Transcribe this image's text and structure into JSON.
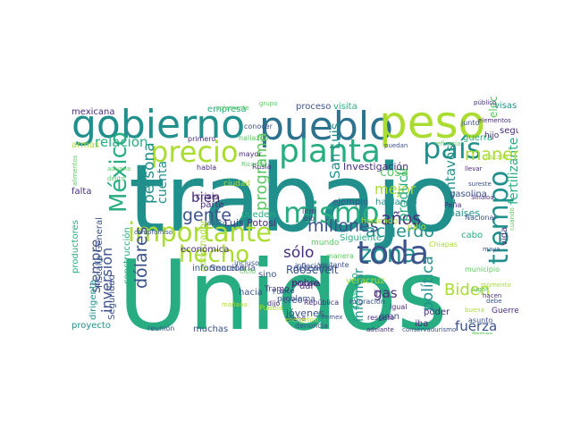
{
  "palette": [
    "#2c728e",
    "#21908d",
    "#27ad81",
    "#5dc863",
    "#aadc32",
    "#fde725",
    "#3b528b",
    "#472d7b",
    "#440154"
  ],
  "words": [
    {
      "t": "trabajo",
      "c": 1
    },
    {
      "t": "Unidos",
      "c": 2
    },
    {
      "t": "gobierno",
      "c": 1
    },
    {
      "t": "pueblo",
      "c": 0
    },
    {
      "t": "peso",
      "c": 4
    },
    {
      "t": "planta",
      "c": 2
    },
    {
      "t": "país",
      "c": 1
    },
    {
      "t": "precio",
      "c": 4
    },
    {
      "t": "importante",
      "c": 4
    },
    {
      "t": "mismo",
      "c": 2
    },
    {
      "t": "hecho",
      "c": 4
    },
    {
      "t": "zona",
      "c": 1
    },
    {
      "t": "toda",
      "c": 6
    },
    {
      "t": "tiempo",
      "c": 1
    },
    {
      "t": "México",
      "c": 2
    },
    {
      "t": "dólares",
      "c": 6
    },
    {
      "t": "acuerdo",
      "c": 1
    },
    {
      "t": "centavos",
      "c": 1
    },
    {
      "t": "millones",
      "c": 6
    },
    {
      "t": "gente",
      "c": 6
    },
    {
      "t": "Biden",
      "c": 4
    },
    {
      "t": "programa",
      "c": 3
    },
    {
      "t": "fertilizante",
      "c": 2
    },
    {
      "t": "manera",
      "c": 4
    },
    {
      "t": "persona",
      "c": 1
    },
    {
      "t": "relación",
      "c": 2
    },
    {
      "t": "años",
      "c": 7
    },
    {
      "t": "política",
      "c": 1
    },
    {
      "t": "fuerza",
      "c": 6
    },
    {
      "t": "mejor",
      "c": 4
    },
    {
      "t": "inversión",
      "c": 6
    },
    {
      "t": "siempre",
      "c": 6
    },
    {
      "t": "sólo",
      "c": 7
    },
    {
      "t": "producir",
      "c": 2
    },
    {
      "t": "informar",
      "c": 1
    },
    {
      "t": "San Luis",
      "c": 1
    },
    {
      "t": "cosa",
      "c": 3
    },
    {
      "t": "bien",
      "c": 7
    },
    {
      "t": "gas",
      "c": 7
    },
    {
      "t": "cuenta",
      "c": 1
    },
    {
      "t": "Roosevelt",
      "c": 6
    },
    {
      "t": "Luis Potosí",
      "c": 7
    },
    {
      "t": "Fiscalía General",
      "c": 6
    },
    {
      "t": "Investigación",
      "c": 7
    },
    {
      "t": "electricidad",
      "c": 3
    },
    {
      "t": "empresa",
      "c": 2
    },
    {
      "t": "proceso",
      "c": 6
    },
    {
      "t": "visita",
      "c": 2
    },
    {
      "t": "mexicana",
      "c": 7
    },
    {
      "t": "visas",
      "c": 1
    },
    {
      "t": "seguir",
      "c": 7
    },
    {
      "t": "guerra",
      "c": 2
    },
    {
      "t": "gasolina",
      "c": 6
    },
    {
      "t": "hablando",
      "c": 1
    },
    {
      "t": "países",
      "c": 1
    },
    {
      "t": "ejemplo",
      "c": 6
    },
    {
      "t": "pobre",
      "c": 7
    },
    {
      "t": "mundo",
      "c": 3
    },
    {
      "t": "dirigente",
      "c": 1
    },
    {
      "t": "jóvenes",
      "c": 6
    },
    {
      "t": "pasado",
      "c": 2
    },
    {
      "t": "gran",
      "c": 6
    },
    {
      "t": "poder",
      "c": 7
    },
    {
      "t": "iba",
      "c": 7
    },
    {
      "t": "hacia",
      "c": 6
    },
    {
      "t": "creo",
      "c": 6
    },
    {
      "t": "Seguridad",
      "c": 6
    },
    {
      "t": "proyecto",
      "c": 1
    },
    {
      "t": "gobernador",
      "c": 4
    },
    {
      "t": "muchas",
      "c": 6
    },
    {
      "t": "Secretaría",
      "c": 6
    },
    {
      "t": "información",
      "c": 6
    },
    {
      "t": "construcción",
      "c": 2
    },
    {
      "t": "económica",
      "c": 7
    },
    {
      "t": "detenido",
      "c": 6
    },
    {
      "t": "veracruz",
      "c": 4
    },
    {
      "t": "problema",
      "c": 6
    },
    {
      "t": "Siguiente",
      "c": 2
    },
    {
      "t": "haciendo",
      "c": 4
    },
    {
      "t": "julio",
      "c": 4
    },
    {
      "t": "cabo",
      "c": 2
    },
    {
      "t": "vida",
      "c": 7
    },
    {
      "t": "dar",
      "c": 7
    },
    {
      "t": "parte",
      "c": 7
    },
    {
      "t": "crisis",
      "c": 7
    },
    {
      "t": "falta",
      "c": 7
    },
    {
      "t": "armas",
      "c": 4
    },
    {
      "t": "productores",
      "c": 2
    },
    {
      "t": "Tramo",
      "c": 7
    },
    {
      "t": "sino",
      "c": 6
    },
    {
      "t": "Jalisco",
      "c": 6
    },
    {
      "t": "ciudad",
      "c": 4
    },
    {
      "t": "habla",
      "c": 7
    },
    {
      "t": "primero",
      "c": 7
    },
    {
      "t": "conocer",
      "c": 6
    },
    {
      "t": "mayor",
      "c": 7
    },
    {
      "t": "Rusia",
      "c": 7
    },
    {
      "t": "pueden",
      "c": 2
    },
    {
      "t": "ir",
      "c": 7
    },
    {
      "t": "Puebla",
      "c": 4
    },
    {
      "t": "Chiapas",
      "c": 4
    },
    {
      "t": "Nacional",
      "c": 6
    },
    {
      "t": "asunto",
      "c": 6
    },
    {
      "t": "Guerrero",
      "c": 7
    },
    {
      "t": "homicidio",
      "c": 7
    },
    {
      "t": "adelante",
      "c": 7
    },
    {
      "t": "conservadurismo",
      "c": 6
    },
    {
      "t": "denuncia",
      "c": 6
    },
    {
      "t": "reunión",
      "c": 6
    },
    {
      "t": "respeto",
      "c": 7
    },
    {
      "t": "igual",
      "c": 7
    },
    {
      "t": "junto",
      "c": 6
    },
    {
      "t": "elementos",
      "c": 7
    },
    {
      "t": "hijo",
      "c": 7
    },
    {
      "t": "Fiscalía",
      "c": 4
    },
    {
      "t": "Peña",
      "c": 7
    },
    {
      "t": "llevar",
      "c": 7
    },
    {
      "t": "sureste",
      "c": 6
    },
    {
      "t": "Sinaloa",
      "c": 7
    },
    {
      "t": "momento",
      "c": 4
    },
    {
      "t": "hacen",
      "c": 7
    },
    {
      "t": "incluso",
      "c": 6
    },
    {
      "t": "visitante",
      "c": 6
    },
    {
      "t": "Ricardo",
      "c": 3
    },
    {
      "t": "aduana",
      "c": 3
    },
    {
      "t": "delito",
      "c": 3
    },
    {
      "t": "compromiso",
      "c": 6
    },
    {
      "t": "alimentos",
      "c": 3
    },
    {
      "t": "manera",
      "c": 3
    },
    {
      "t": "inflación",
      "c": 6
    },
    {
      "t": "migración",
      "c": 6
    },
    {
      "t": "República",
      "c": 7
    },
    {
      "t": "primera",
      "c": 7
    },
    {
      "t": "viene",
      "c": 7
    },
    {
      "t": "dice",
      "c": 7
    },
    {
      "t": "dijo",
      "c": 7
    },
    {
      "t": "dio",
      "c": 7
    },
    {
      "t": "litro",
      "c": 7
    },
    {
      "t": "público",
      "c": 7
    },
    {
      "t": "grupo",
      "c": 3
    },
    {
      "t": "hallazgo",
      "c": 3
    },
    {
      "t": "maya",
      "c": 6
    },
    {
      "t": "Pemex",
      "c": 6
    },
    {
      "t": "puedan",
      "c": 6
    },
    {
      "t": "debe",
      "c": 6
    },
    {
      "t": "municipio",
      "c": 3
    },
    {
      "t": "buena",
      "c": 4
    },
    {
      "t": "energético",
      "c": 4
    },
    {
      "t": "mañana",
      "c": 4
    },
    {
      "t": "lugar",
      "c": 3
    },
    {
      "t": "Pemex",
      "c": 3
    },
    {
      "t": "refinería",
      "c": 3
    },
    {
      "t": "cuando",
      "c": 3
    },
    {
      "t": "solamente",
      "c": 3
    },
    {
      "t": "ciclo",
      "c": 3
    },
    {
      "t": "Fox",
      "c": 6
    }
  ]
}
